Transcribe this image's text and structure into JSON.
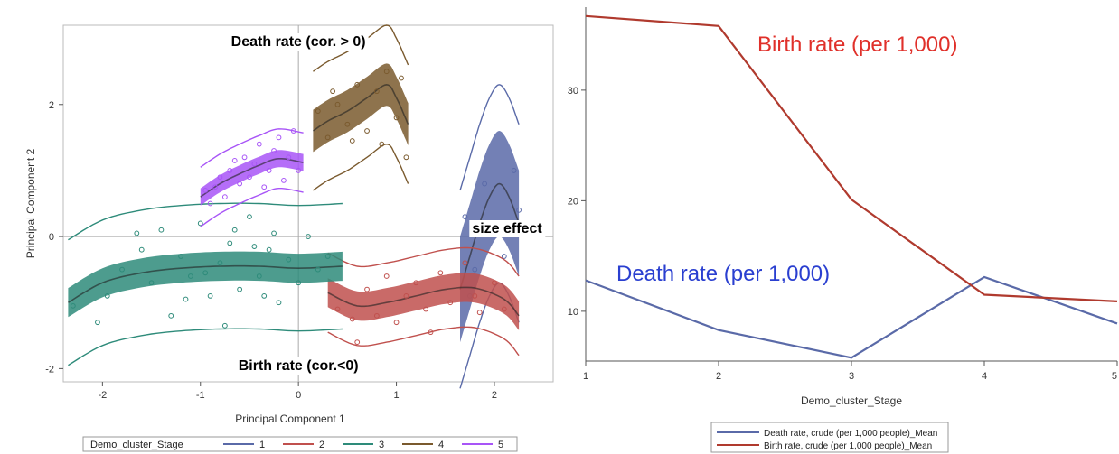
{
  "chart_data": [
    {
      "type": "scatter",
      "xlabel": "Principal Component 1",
      "ylabel": "Principal Component 2",
      "xlim": [
        -2.4,
        2.6
      ],
      "ylim": [
        -2.2,
        3.2
      ],
      "x_ticks": [
        "-2",
        "-1",
        "0",
        "1",
        "2"
      ],
      "y_ticks": [
        "-2",
        "0",
        "2"
      ],
      "legend_title": "Demo_cluster_Stage",
      "legend_position": "bottom",
      "annotations": {
        "death": "Death rate (cor. > 0)",
        "birth": "Birth rate (cor.<0)",
        "size": "size effect"
      },
      "series": [
        {
          "name": "1",
          "color": "#5a6aa8",
          "fit_x": [
            1.65,
            1.75,
            1.85,
            1.95,
            2.05,
            2.15,
            2.25
          ],
          "fit_y": [
            -0.8,
            -0.3,
            0.2,
            0.6,
            0.8,
            0.6,
            0.2
          ],
          "band": 0.8,
          "pred": 1.5,
          "points": [
            [
              1.7,
              0.3
            ],
            [
              1.8,
              -0.5
            ],
            [
              1.9,
              0.8
            ],
            [
              2.0,
              0.1
            ],
            [
              2.1,
              -0.3
            ],
            [
              2.2,
              1.0
            ],
            [
              2.25,
              0.4
            ],
            [
              1.75,
              -0.9
            ]
          ]
        },
        {
          "name": "2",
          "color": "#c0504d",
          "fit_x": [
            0.3,
            0.6,
            0.9,
            1.2,
            1.5,
            1.8,
            2.1,
            2.25
          ],
          "fit_y": [
            -0.85,
            -1.05,
            -1.0,
            -0.9,
            -0.8,
            -0.78,
            -0.95,
            -1.2
          ],
          "band": 0.22,
          "pred": 0.6,
          "points": [
            [
              0.4,
              -1.1
            ],
            [
              0.55,
              -1.25
            ],
            [
              0.7,
              -0.8
            ],
            [
              0.8,
              -1.2
            ],
            [
              0.9,
              -0.6
            ],
            [
              1.0,
              -1.3
            ],
            [
              1.1,
              -0.9
            ],
            [
              1.2,
              -0.7
            ],
            [
              1.3,
              -1.1
            ],
            [
              1.45,
              -0.55
            ],
            [
              1.55,
              -1.0
            ],
            [
              1.7,
              -0.4
            ],
            [
              1.85,
              -1.15
            ],
            [
              2.0,
              -0.7
            ],
            [
              2.1,
              -1.1
            ],
            [
              0.6,
              -1.6
            ],
            [
              1.35,
              -1.45
            ],
            [
              1.8,
              -0.9
            ]
          ]
        },
        {
          "name": "3",
          "color": "#2e8b7a",
          "fit_x": [
            -2.35,
            -2.0,
            -1.6,
            -1.2,
            -0.8,
            -0.4,
            0.0,
            0.45
          ],
          "fit_y": [
            -1.0,
            -0.7,
            -0.55,
            -0.48,
            -0.45,
            -0.45,
            -0.48,
            -0.45
          ],
          "band": 0.22,
          "pred": 0.95,
          "points": [
            [
              -2.3,
              -1.05
            ],
            [
              -2.05,
              -1.3
            ],
            [
              -1.95,
              -0.9
            ],
            [
              -1.8,
              -0.5
            ],
            [
              -1.6,
              -0.2
            ],
            [
              -1.5,
              -0.7
            ],
            [
              -1.4,
              0.1
            ],
            [
              -1.3,
              -1.2
            ],
            [
              -1.2,
              -0.3
            ],
            [
              -1.1,
              -0.6
            ],
            [
              -1.0,
              0.2
            ],
            [
              -0.9,
              -0.9
            ],
            [
              -0.8,
              -0.4
            ],
            [
              -0.7,
              -0.1
            ],
            [
              -0.6,
              -0.8
            ],
            [
              -0.5,
              0.3
            ],
            [
              -0.4,
              -0.6
            ],
            [
              -0.3,
              -0.2
            ],
            [
              -0.2,
              -1.0
            ],
            [
              -0.1,
              -0.35
            ],
            [
              0.0,
              -0.7
            ],
            [
              0.1,
              0.0
            ],
            [
              0.2,
              -0.5
            ],
            [
              0.3,
              -0.3
            ],
            [
              -0.75,
              -1.35
            ],
            [
              -1.15,
              -0.95
            ],
            [
              -0.45,
              -0.15
            ],
            [
              -0.95,
              -0.55
            ],
            [
              -0.25,
              0.05
            ],
            [
              -1.65,
              0.05
            ],
            [
              -0.65,
              0.1
            ],
            [
              -0.35,
              -0.9
            ]
          ]
        },
        {
          "name": "4",
          "color": "#7a5a2e",
          "fit_x": [
            0.15,
            0.3,
            0.5,
            0.7,
            0.9,
            1.0,
            1.12
          ],
          "fit_y": [
            1.6,
            1.75,
            1.9,
            2.1,
            2.3,
            2.1,
            1.7
          ],
          "band": 0.32,
          "pred": 0.9,
          "points": [
            [
              0.2,
              1.9
            ],
            [
              0.3,
              1.5
            ],
            [
              0.4,
              2.0
            ],
            [
              0.5,
              1.7
            ],
            [
              0.6,
              2.3
            ],
            [
              0.7,
              1.6
            ],
            [
              0.8,
              2.2
            ],
            [
              0.9,
              2.5
            ],
            [
              1.0,
              1.8
            ],
            [
              1.05,
              2.4
            ],
            [
              0.35,
              2.2
            ],
            [
              0.85,
              1.4
            ],
            [
              0.55,
              1.45
            ],
            [
              1.1,
              1.2
            ]
          ]
        },
        {
          "name": "5",
          "color": "#a855f7",
          "fit_x": [
            -1.0,
            -0.8,
            -0.6,
            -0.4,
            -0.2,
            0.05
          ],
          "fit_y": [
            0.6,
            0.8,
            0.95,
            1.08,
            1.18,
            1.12
          ],
          "band": 0.13,
          "pred": 0.45,
          "points": [
            [
              -0.95,
              0.7
            ],
            [
              -0.9,
              0.5
            ],
            [
              -0.8,
              0.9
            ],
            [
              -0.75,
              0.6
            ],
            [
              -0.7,
              1.0
            ],
            [
              -0.6,
              0.8
            ],
            [
              -0.55,
              1.2
            ],
            [
              -0.5,
              0.9
            ],
            [
              -0.45,
              1.1
            ],
            [
              -0.4,
              1.4
            ],
            [
              -0.3,
              1.0
            ],
            [
              -0.25,
              1.3
            ],
            [
              -0.2,
              1.5
            ],
            [
              -0.1,
              1.2
            ],
            [
              -0.05,
              1.6
            ],
            [
              0.0,
              1.0
            ],
            [
              -0.65,
              1.15
            ],
            [
              -0.35,
              0.75
            ],
            [
              -0.15,
              0.85
            ],
            [
              -0.85,
              0.75
            ]
          ]
        }
      ]
    },
    {
      "type": "line",
      "xlabel": "Demo_cluster_Stage",
      "ylabel": "",
      "x": [
        1,
        2,
        3,
        4,
        5
      ],
      "x_ticks": [
        "1",
        "2",
        "3",
        "4",
        "5"
      ],
      "y_ticks": [
        "10",
        "20",
        "30"
      ],
      "xlim": [
        1,
        5
      ],
      "ylim": [
        5.5,
        37.5
      ],
      "legend_position": "bottom",
      "annotations": {
        "birth": "Birth rate (per 1,000)",
        "death": "Death rate (per 1,000)"
      },
      "series": [
        {
          "name": "Death rate, crude (per 1,000 people)_Mean",
          "color": "#5a6aa8",
          "values": [
            12.8,
            8.3,
            5.8,
            13.1,
            8.9
          ]
        },
        {
          "name": "Birth rate, crude (per 1,000 people)_Mean",
          "color": "#b03a2e",
          "values": [
            36.7,
            35.8,
            20.1,
            11.5,
            10.9
          ]
        }
      ]
    }
  ]
}
